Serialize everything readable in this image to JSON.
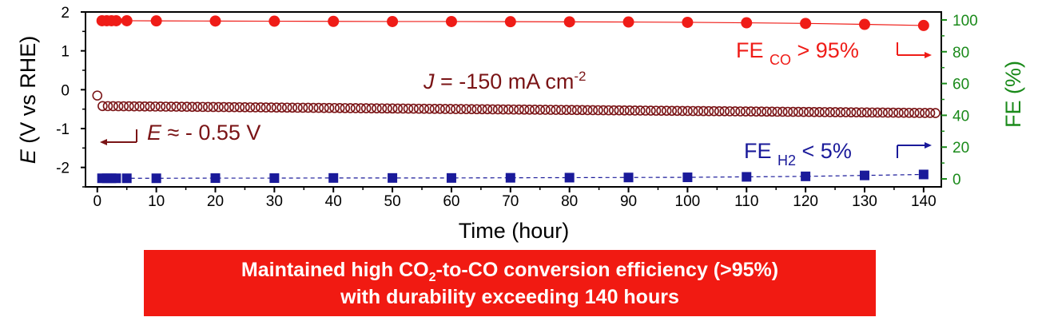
{
  "colors": {
    "fe_co": "#ef1c17",
    "potential": "#7a1416",
    "fe_h2": "#1a1a9a",
    "right_axis": "#1a8a1a",
    "banner_bg": "#f11a12",
    "banner_text": "#ffffff",
    "axis": "#000000"
  },
  "chart_data": {
    "type": "scatter",
    "xlabel": "Time (hour)",
    "xlim": [
      -2,
      143
    ],
    "xticks": [
      0,
      10,
      20,
      30,
      40,
      50,
      60,
      70,
      80,
      90,
      100,
      110,
      120,
      130,
      140
    ],
    "left_axis": {
      "label_italic": "E",
      "label_rest": " (V vs RHE)",
      "ylim": [
        -2.5,
        2
      ],
      "ticks": [
        -2,
        -1,
        0,
        1,
        2
      ]
    },
    "right_axis": {
      "label": "FE (%)",
      "ylim": [
        -5,
        105
      ],
      "ticks": [
        0,
        20,
        40,
        60,
        80,
        100
      ]
    },
    "grid": false,
    "series": [
      {
        "name": "FE CO",
        "axis": "right",
        "marker": "circle-filled",
        "x": [
          0.8,
          1.6,
          2.4,
          3.2,
          5,
          10,
          20,
          30,
          40,
          50,
          60,
          70,
          80,
          90,
          100,
          110,
          120,
          130,
          140
        ],
        "y": [
          99.5,
          99.5,
          99.5,
          99.5,
          99.5,
          99.4,
          99.3,
          99.2,
          99.1,
          99.0,
          99.0,
          98.9,
          98.8,
          98.7,
          98.5,
          98.2,
          97.8,
          97.2,
          96.5
        ]
      },
      {
        "name": "FE H2",
        "axis": "right",
        "marker": "square-filled",
        "x": [
          0.8,
          1.6,
          2.4,
          3.2,
          5,
          10,
          20,
          30,
          40,
          50,
          60,
          70,
          80,
          90,
          100,
          110,
          120,
          130,
          140
        ],
        "y": [
          0.4,
          0.4,
          0.4,
          0.4,
          0.4,
          0.4,
          0.5,
          0.5,
          0.6,
          0.6,
          0.6,
          0.7,
          0.8,
          0.9,
          1.0,
          1.3,
          1.6,
          2.2,
          2.8
        ]
      },
      {
        "name": "E",
        "axis": "left",
        "marker": "circle-open",
        "x_start": 0,
        "x_end": 142,
        "samples": 160,
        "y_start": -0.15,
        "y_settled": -0.42,
        "y_end": -0.6
      }
    ],
    "annotations": {
      "current_italic": "J",
      "current_rest": " = -150 mA cm",
      "current_sup": "-2",
      "potential_italic": "E",
      "potential_rest": " ≈ - 0.55 V",
      "fe_co_main": "FE ",
      "fe_co_sub": "CO",
      "fe_co_rest": " > 95%",
      "fe_h2_main": "FE ",
      "fe_h2_sub": "H2",
      "fe_h2_rest": " < 5%"
    }
  },
  "banner": {
    "line1_a": "Maintained high CO",
    "line1_sub": "2",
    "line1_b": "-to-CO conversion efficiency (>95%)",
    "line2": "with durability exceeding 140 hours"
  }
}
